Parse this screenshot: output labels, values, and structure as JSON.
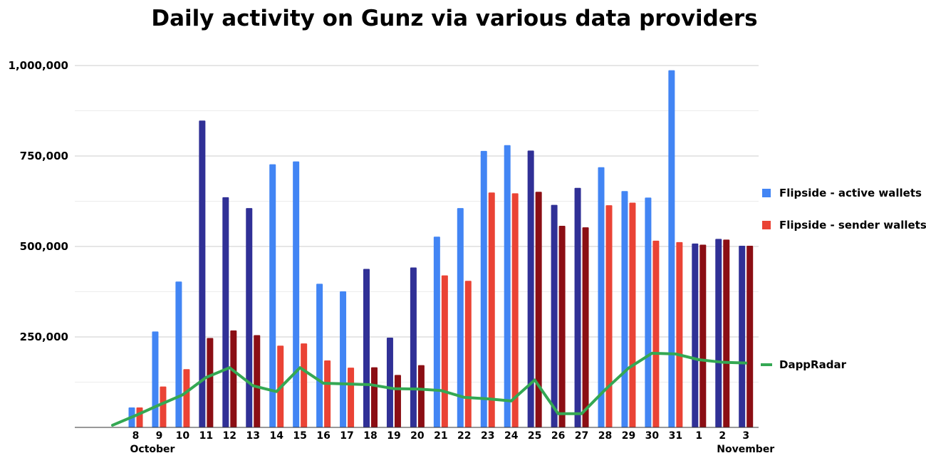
{
  "chart_data": {
    "type": "bar",
    "title": "Daily activity on Gunz via various data providers",
    "xlabel": "",
    "ylabel": "",
    "ylim": [
      0,
      1000000
    ],
    "yticks": [
      {
        "value": 250000,
        "label": "250,000"
      },
      {
        "value": 500000,
        "label": "500,000"
      },
      {
        "value": 750000,
        "label": "750,000"
      },
      {
        "value": 1000000,
        "label": "1,000,000"
      }
    ],
    "categories": [
      "8",
      "9",
      "10",
      "11",
      "12",
      "13",
      "14",
      "15",
      "16",
      "17",
      "18",
      "19",
      "20",
      "21",
      "22",
      "23",
      "24",
      "25",
      "26",
      "27",
      "28",
      "29",
      "30",
      "31",
      "1",
      "2",
      "3"
    ],
    "category_groups": [
      {
        "label": "October",
        "anchor_index": 0
      },
      {
        "label": "November",
        "anchor_index": 25
      }
    ],
    "series": [
      {
        "name": "Flipside - active wallets",
        "type": "bar",
        "color": "#4285f4",
        "highlight_color": "#303096",
        "values": [
          55000,
          265000,
          403000,
          848000,
          636000,
          606000,
          727000,
          735000,
          397000,
          376000,
          438000,
          248000,
          442000,
          527000,
          606000,
          764000,
          780000,
          765000,
          615000,
          662000,
          719000,
          653000,
          635000,
          987000,
          508000,
          521000,
          502000
        ],
        "highlighted": [
          false,
          false,
          false,
          true,
          true,
          true,
          false,
          false,
          false,
          false,
          true,
          true,
          true,
          false,
          false,
          false,
          false,
          true,
          true,
          true,
          false,
          false,
          false,
          false,
          true,
          true,
          true
        ]
      },
      {
        "name": "Flipside - sender wallets",
        "type": "bar",
        "color": "#ea4335",
        "highlight_color": "#8b0e14",
        "values": [
          55000,
          113000,
          161000,
          247000,
          268000,
          255000,
          226000,
          232000,
          185000,
          165000,
          166000,
          145000,
          172000,
          420000,
          405000,
          649000,
          647000,
          651000,
          557000,
          553000,
          614000,
          621000,
          516000,
          512000,
          505000,
          519000,
          502000
        ],
        "highlighted": [
          false,
          false,
          false,
          true,
          true,
          true,
          false,
          false,
          false,
          false,
          true,
          true,
          true,
          false,
          false,
          false,
          false,
          true,
          true,
          true,
          false,
          false,
          false,
          false,
          true,
          true,
          true
        ]
      },
      {
        "name": "DappRadar",
        "type": "line",
        "color": "#34a853",
        "values": [
          33000,
          62000,
          90000,
          138000,
          165000,
          115000,
          99000,
          165000,
          122000,
          120000,
          118000,
          107000,
          106000,
          102000,
          83000,
          79000,
          73000,
          131000,
          38000,
          38000,
          104000,
          164000,
          205000,
          203000,
          187000,
          180000,
          178000
        ],
        "lead_in_value": 6000
      }
    ]
  }
}
